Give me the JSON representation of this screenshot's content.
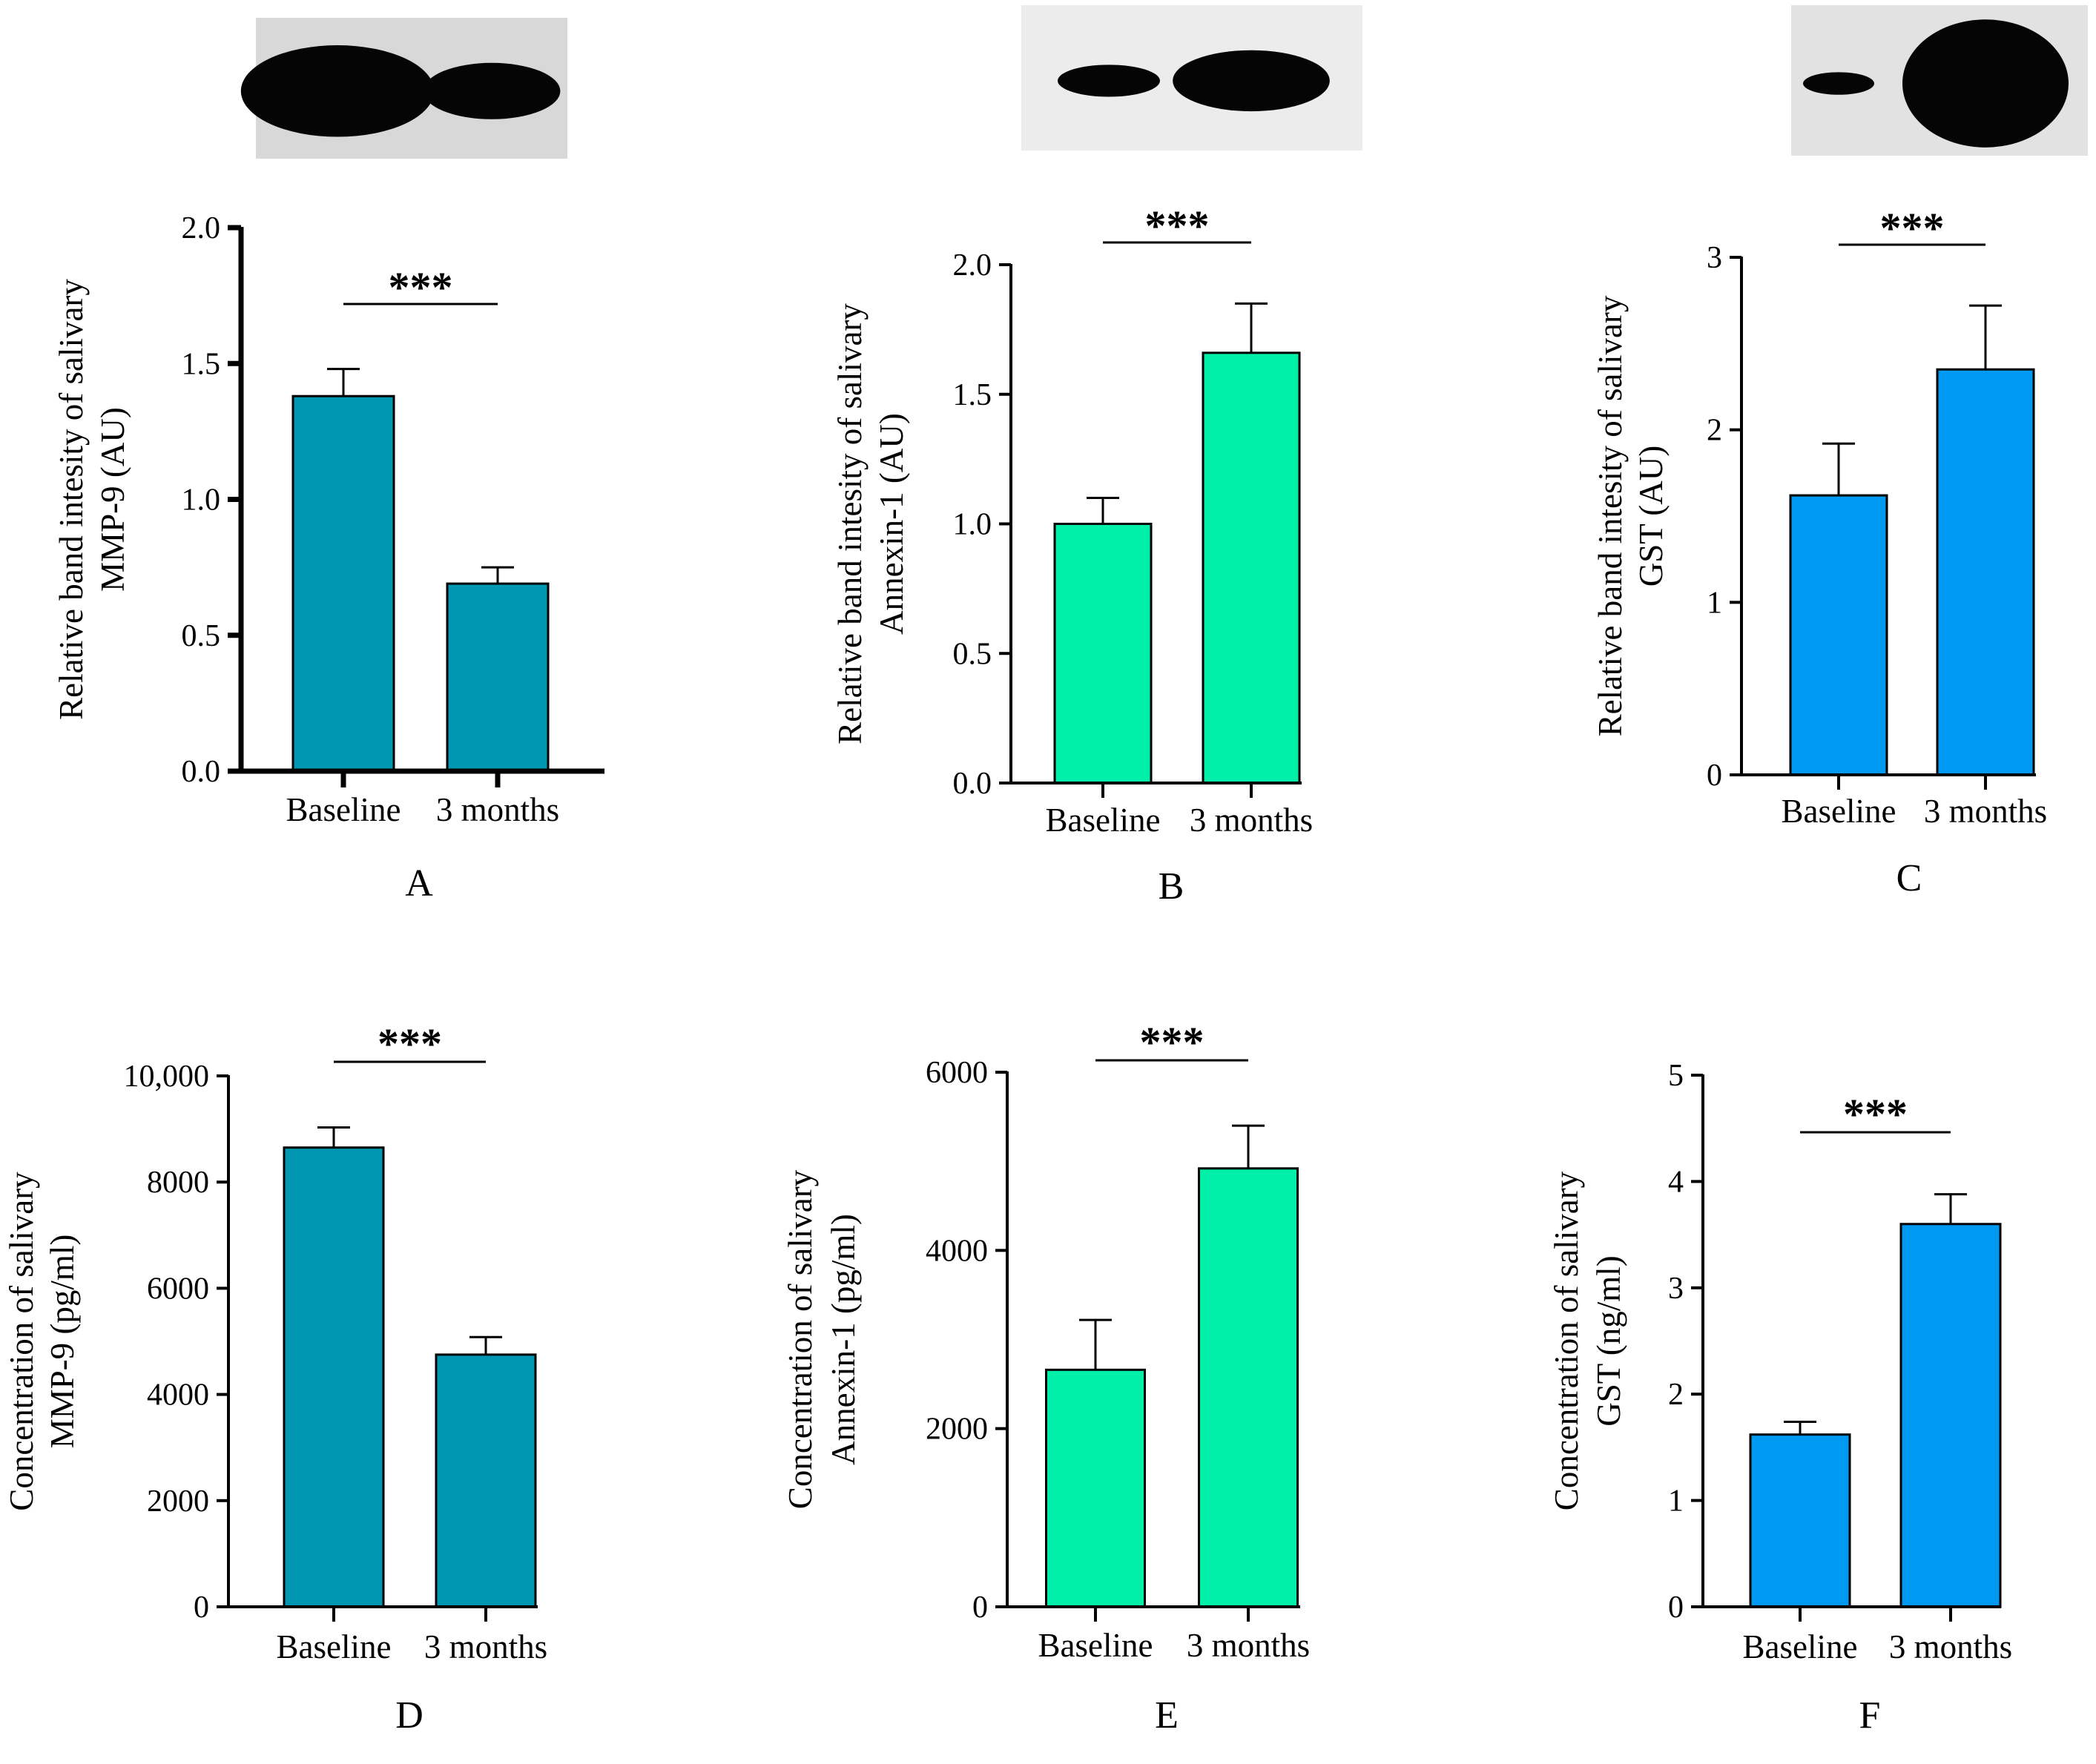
{
  "chart_data": [
    {
      "type": "bar",
      "panel_label": "A",
      "categories": [
        "Baseline",
        "3 months"
      ],
      "values": [
        1.38,
        0.69
      ],
      "errors": [
        0.1,
        0.06
      ],
      "ylabel_line1": "Relative band intesity of salivary",
      "ylabel_line2": "MMP-9 (AU)",
      "ylim": [
        0,
        2.0
      ],
      "ticks": [
        "0.0",
        "0.5",
        "1.0",
        "1.5",
        "2.0"
      ],
      "tick_values": [
        0,
        0.5,
        1.0,
        1.5,
        2.0
      ],
      "significance": "***",
      "bar_color": "#0097B2",
      "blot": [
        {
          "w": 0.62,
          "h": 0.65
        },
        {
          "w": 0.44,
          "h": 0.4
        }
      ]
    },
    {
      "type": "bar",
      "panel_label": "B",
      "categories": [
        "Baseline",
        "3 months"
      ],
      "values": [
        1.0,
        1.66
      ],
      "errors": [
        0.1,
        0.19
      ],
      "ylabel_line1": "Relative band intesity of salivary",
      "ylabel_line2": "Annexin-1 (AU)",
      "ylim": [
        0,
        2.0
      ],
      "ticks": [
        "0.0",
        "0.5",
        "1.0",
        "1.5",
        "2.0"
      ],
      "tick_values": [
        0,
        0.5,
        1.0,
        1.5,
        2.0
      ],
      "significance": "***",
      "bar_color": "#00F0AA",
      "blot": [
        {
          "w": 0.3,
          "h": 0.22
        },
        {
          "w": 0.46,
          "h": 0.42
        }
      ]
    },
    {
      "type": "bar",
      "panel_label": "C",
      "categories": [
        "Baseline",
        "3 months"
      ],
      "values": [
        1.62,
        2.35
      ],
      "errors": [
        0.3,
        0.37
      ],
      "ylabel_line1": "Relative band intesity of salivary",
      "ylabel_line2": "GST (AU)",
      "ylim": [
        0,
        3
      ],
      "ticks": [
        "0",
        "1",
        "2",
        "3"
      ],
      "tick_values": [
        0,
        1,
        2,
        3
      ],
      "significance": "***",
      "bar_color": "#0099F2",
      "blot": [
        {
          "w": 0.24,
          "h": 0.15
        },
        {
          "w": 0.56,
          "h": 0.85
        }
      ]
    },
    {
      "type": "bar",
      "panel_label": "D",
      "categories": [
        "Baseline",
        "3 months"
      ],
      "values": [
        8650,
        4750
      ],
      "errors": [
        380,
        330
      ],
      "ylabel_line1": "Concentration of salivary",
      "ylabel_line2": "MMP-9 (pg/ml)",
      "ylim": [
        0,
        10000
      ],
      "ticks": [
        "0",
        "2000",
        "4000",
        "6000",
        "8000",
        "10,000"
      ],
      "tick_values": [
        0,
        2000,
        4000,
        6000,
        8000,
        10000
      ],
      "significance": "***",
      "bar_color": "#0097B2"
    },
    {
      "type": "bar",
      "panel_label": "E",
      "categories": [
        "Baseline",
        "3 months"
      ],
      "values": [
        2660,
        4920
      ],
      "errors": [
        560,
        480
      ],
      "ylabel_line1": "Concentration of salivary",
      "ylabel_line2": "Annexin-1 (pg/ml)",
      "ylim": [
        0,
        6000
      ],
      "ticks": [
        "0",
        "2000",
        "4000",
        "6000"
      ],
      "tick_values": [
        0,
        2000,
        4000,
        6000
      ],
      "significance": "***",
      "bar_color": "#00F0AA"
    },
    {
      "type": "bar",
      "panel_label": "F",
      "categories": [
        "Baseline",
        "3 months"
      ],
      "values": [
        1.62,
        3.6
      ],
      "errors": [
        0.12,
        0.28
      ],
      "ylabel_line1": "Concentration of salivary",
      "ylabel_line2": "GST (ng/ml)",
      "ylim": [
        0,
        5
      ],
      "ticks": [
        "0",
        "1",
        "2",
        "3",
        "4",
        "5"
      ],
      "tick_values": [
        0,
        1,
        2,
        3,
        4,
        5
      ],
      "significance": "***",
      "bar_color": "#0099F2"
    }
  ]
}
